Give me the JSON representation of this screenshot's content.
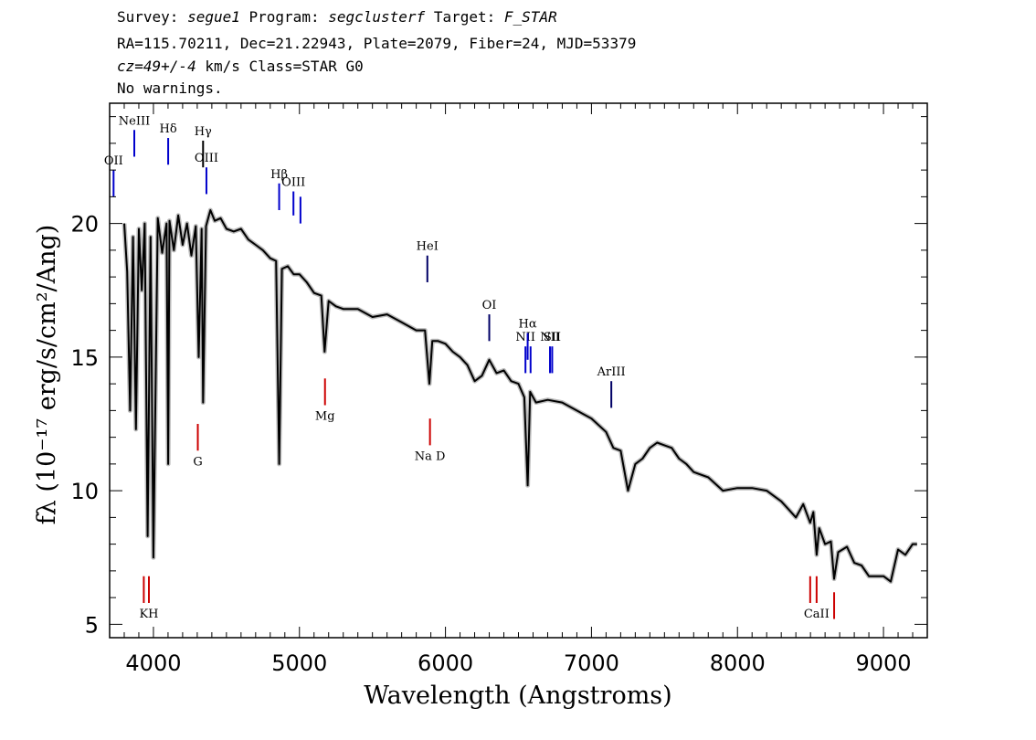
{
  "header": {
    "survey_label": "Survey:",
    "survey": "segue1",
    "program_label": "Program:",
    "program": "segclusterf",
    "target_label": "Target:",
    "target": "F_STAR",
    "line2": "RA=115.70211, Dec=21.22943, Plate=2079, Fiber=24, MJD=53379",
    "cz": "cz=49+/-4",
    "cz_rest": " km/s Class=STAR G0",
    "line4": "No warnings."
  },
  "chart_data": {
    "type": "line",
    "xlabel": "Wavelength (Angstroms)",
    "ylabel": "fλ (10⁻¹⁷ erg/s/cm²/Ang)",
    "xlim": [
      3700,
      9300
    ],
    "ylim": [
      4.5,
      24.5
    ],
    "x_ticks": [
      4000,
      5000,
      6000,
      7000,
      8000,
      9000
    ],
    "y_ticks": [
      5,
      10,
      15,
      20
    ],
    "grid": false,
    "series": [
      {
        "color": "#000000",
        "error_color": "#bbbbbb",
        "x": [
          3800,
          3820,
          3840,
          3860,
          3880,
          3900,
          3920,
          3940,
          3960,
          3980,
          4000,
          4030,
          4060,
          4090,
          4101,
          4110,
          4140,
          4170,
          4200,
          4230,
          4260,
          4290,
          4310,
          4330,
          4340,
          4360,
          4390,
          4420,
          4460,
          4500,
          4550,
          4600,
          4650,
          4700,
          4750,
          4800,
          4840,
          4861,
          4880,
          4920,
          4960,
          5000,
          5050,
          5100,
          5150,
          5172,
          5200,
          5250,
          5300,
          5400,
          5500,
          5600,
          5700,
          5800,
          5860,
          5890,
          5910,
          5950,
          6000,
          6050,
          6100,
          6150,
          6200,
          6250,
          6300,
          6350,
          6400,
          6450,
          6500,
          6540,
          6563,
          6580,
          6620,
          6700,
          6800,
          6900,
          7000,
          7100,
          7150,
          7200,
          7250,
          7300,
          7350,
          7400,
          7450,
          7500,
          7550,
          7600,
          7650,
          7700,
          7800,
          7900,
          8000,
          8100,
          8200,
          8300,
          8350,
          8400,
          8450,
          8498,
          8520,
          8542,
          8560,
          8600,
          8640,
          8662,
          8690,
          8750,
          8800,
          8850,
          8900,
          9000,
          9050,
          9100,
          9150,
          9200,
          9230
        ],
        "y": [
          20.0,
          18.2,
          13.0,
          19.5,
          12.3,
          19.8,
          17.5,
          20.0,
          8.3,
          19.5,
          7.5,
          20.2,
          18.9,
          20.0,
          11.0,
          20.1,
          19.0,
          20.3,
          19.2,
          20.0,
          18.8,
          19.9,
          15.0,
          19.8,
          13.3,
          19.9,
          20.5,
          20.1,
          20.2,
          19.8,
          19.7,
          19.8,
          19.4,
          19.2,
          19.0,
          18.7,
          18.6,
          11.0,
          18.3,
          18.4,
          18.1,
          18.1,
          17.8,
          17.4,
          17.3,
          15.2,
          17.1,
          16.9,
          16.8,
          16.8,
          16.5,
          16.6,
          16.3,
          16.0,
          16.0,
          14.0,
          15.6,
          15.6,
          15.5,
          15.2,
          15.0,
          14.7,
          14.1,
          14.3,
          14.9,
          14.4,
          14.5,
          14.1,
          14.0,
          13.5,
          10.2,
          13.7,
          13.3,
          13.4,
          13.3,
          13.0,
          12.7,
          12.2,
          11.6,
          11.5,
          10.0,
          11.0,
          11.2,
          11.6,
          11.8,
          11.7,
          11.6,
          11.2,
          11.0,
          10.7,
          10.5,
          10.0,
          10.1,
          10.1,
          10.0,
          9.6,
          9.3,
          9.0,
          9.5,
          8.8,
          9.2,
          7.6,
          8.6,
          8.0,
          8.1,
          6.7,
          7.7,
          7.9,
          7.3,
          7.2,
          6.8,
          6.8,
          6.6,
          7.8,
          7.6,
          8.0,
          8.0
        ]
      }
    ],
    "line_markers": [
      {
        "label": "OII",
        "x": 3727,
        "color": "#0000cc",
        "y0": 21.0,
        "y1": 22.0
      },
      {
        "label": "NeIII",
        "x": 3869,
        "color": "#0000cc",
        "y0": 22.5,
        "y1": 23.5
      },
      {
        "label": "Hδ",
        "x": 4101,
        "color": "#0000cc",
        "y0": 22.2,
        "y1": 23.2
      },
      {
        "label": "Hγ",
        "x": 4340,
        "color": "#000000",
        "y0": 22.1,
        "y1": 23.1
      },
      {
        "label": "OIII",
        "x": 4363,
        "color": "#0000cc",
        "y0": 21.1,
        "y1": 22.1
      },
      {
        "label": "Hβ",
        "x": 4861,
        "color": "#0000cc",
        "y0": 20.5,
        "y1": 21.5
      },
      {
        "label": "OIII",
        "x": 4959,
        "color": "#0000cc",
        "y0": 20.3,
        "y1": 21.2
      },
      {
        "label": "",
        "x": 5007,
        "color": "#0000cc",
        "y0": 20.0,
        "y1": 21.0
      },
      {
        "label": "HeI",
        "x": 5876,
        "color": "#000066",
        "y0": 17.8,
        "y1": 18.8
      },
      {
        "label": "OI",
        "x": 6300,
        "color": "#000066",
        "y0": 15.6,
        "y1": 16.6
      },
      {
        "label": "NII",
        "x": 6548,
        "color": "#0000cc",
        "y0": 14.4,
        "y1": 15.4
      },
      {
        "label": "Hα",
        "x": 6563,
        "color": "#0000cc",
        "y0": 14.9,
        "y1": 15.9
      },
      {
        "label": "",
        "x": 6583,
        "color": "#0000cc",
        "y0": 14.4,
        "y1": 15.4
      },
      {
        "label": "NII",
        "x": 6716,
        "color": "#0000cc",
        "y0": 14.4,
        "y1": 15.4
      },
      {
        "label": "SII",
        "x": 6731,
        "color": "#0000cc",
        "y0": 14.4,
        "y1": 15.4
      },
      {
        "label": "ArIII",
        "x": 7136,
        "color": "#000066",
        "y0": 13.1,
        "y1": 14.1
      },
      {
        "label": "",
        "x": 3934,
        "color": "#cc0000",
        "y0": 5.8,
        "y1": 6.8
      },
      {
        "label": "KH",
        "x": 3969,
        "color": "#cc0000",
        "y0": 5.8,
        "y1": 6.8
      },
      {
        "label": "G",
        "x": 4304,
        "color": "#cc0000",
        "y0": 11.5,
        "y1": 12.5
      },
      {
        "label": "Mg",
        "x": 5175,
        "color": "#cc0000",
        "y0": 13.2,
        "y1": 14.2
      },
      {
        "label": "Na D",
        "x": 5894,
        "color": "#cc0000",
        "y0": 11.7,
        "y1": 12.7
      },
      {
        "label": "",
        "x": 8498,
        "color": "#cc0000",
        "y0": 5.8,
        "y1": 6.8
      },
      {
        "label": "CaII",
        "x": 8542,
        "color": "#cc0000",
        "y0": 5.8,
        "y1": 6.8
      },
      {
        "label": "",
        "x": 8662,
        "color": "#cc0000",
        "y0": 5.2,
        "y1": 6.2
      }
    ]
  }
}
